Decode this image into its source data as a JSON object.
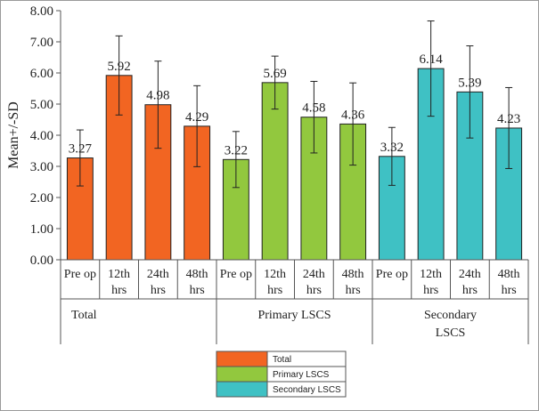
{
  "chart_data": {
    "type": "bar",
    "ylabel": "Mean+/-SD",
    "ylim": [
      0,
      8
    ],
    "yticks": [
      "0.00",
      "1.00",
      "2.00",
      "3.00",
      "4.00",
      "5.00",
      "6.00",
      "7.00",
      "8.00"
    ],
    "time_labels": [
      {
        "line1": "Pre op",
        "line2": ""
      },
      {
        "line1": "12th",
        "line2": "hrs"
      },
      {
        "line1": "24th",
        "line2": "hrs"
      },
      {
        "line1": "48th",
        "line2": "hrs"
      }
    ],
    "groups": [
      {
        "name": "Total",
        "label_lines": [
          "Total"
        ],
        "color": "#f26522",
        "values": [
          3.27,
          5.92,
          4.98,
          4.29
        ],
        "value_labels": [
          "3.27",
          "5.92",
          "4.98",
          "4.29"
        ],
        "sd": [
          0.9,
          1.27,
          1.4,
          1.3
        ]
      },
      {
        "name": "Primary LSCS",
        "label_lines": [
          "Primary LSCS"
        ],
        "color": "#92c83e",
        "values": [
          3.22,
          5.69,
          4.58,
          4.36
        ],
        "value_labels": [
          "3.22",
          "5.69",
          "4.58",
          "4.36"
        ],
        "sd": [
          0.9,
          0.85,
          1.15,
          1.32
        ]
      },
      {
        "name": "Secondary LSCS",
        "label_lines": [
          "Secondary",
          "LSCS"
        ],
        "color": "#3fc1c4",
        "values": [
          3.32,
          6.14,
          5.39,
          4.23
        ],
        "value_labels": [
          "3.32",
          "6.14",
          "5.39",
          "4.23"
        ],
        "sd": [
          0.93,
          1.53,
          1.48,
          1.3
        ]
      }
    ],
    "legend": {
      "placement": "bottom-center",
      "entries": [
        {
          "label": "Total",
          "color": "#f26522"
        },
        {
          "label": "Primary LSCS",
          "color": "#92c83e"
        },
        {
          "label": "Secondary LSCS",
          "color": "#3fc1c4"
        }
      ]
    }
  }
}
